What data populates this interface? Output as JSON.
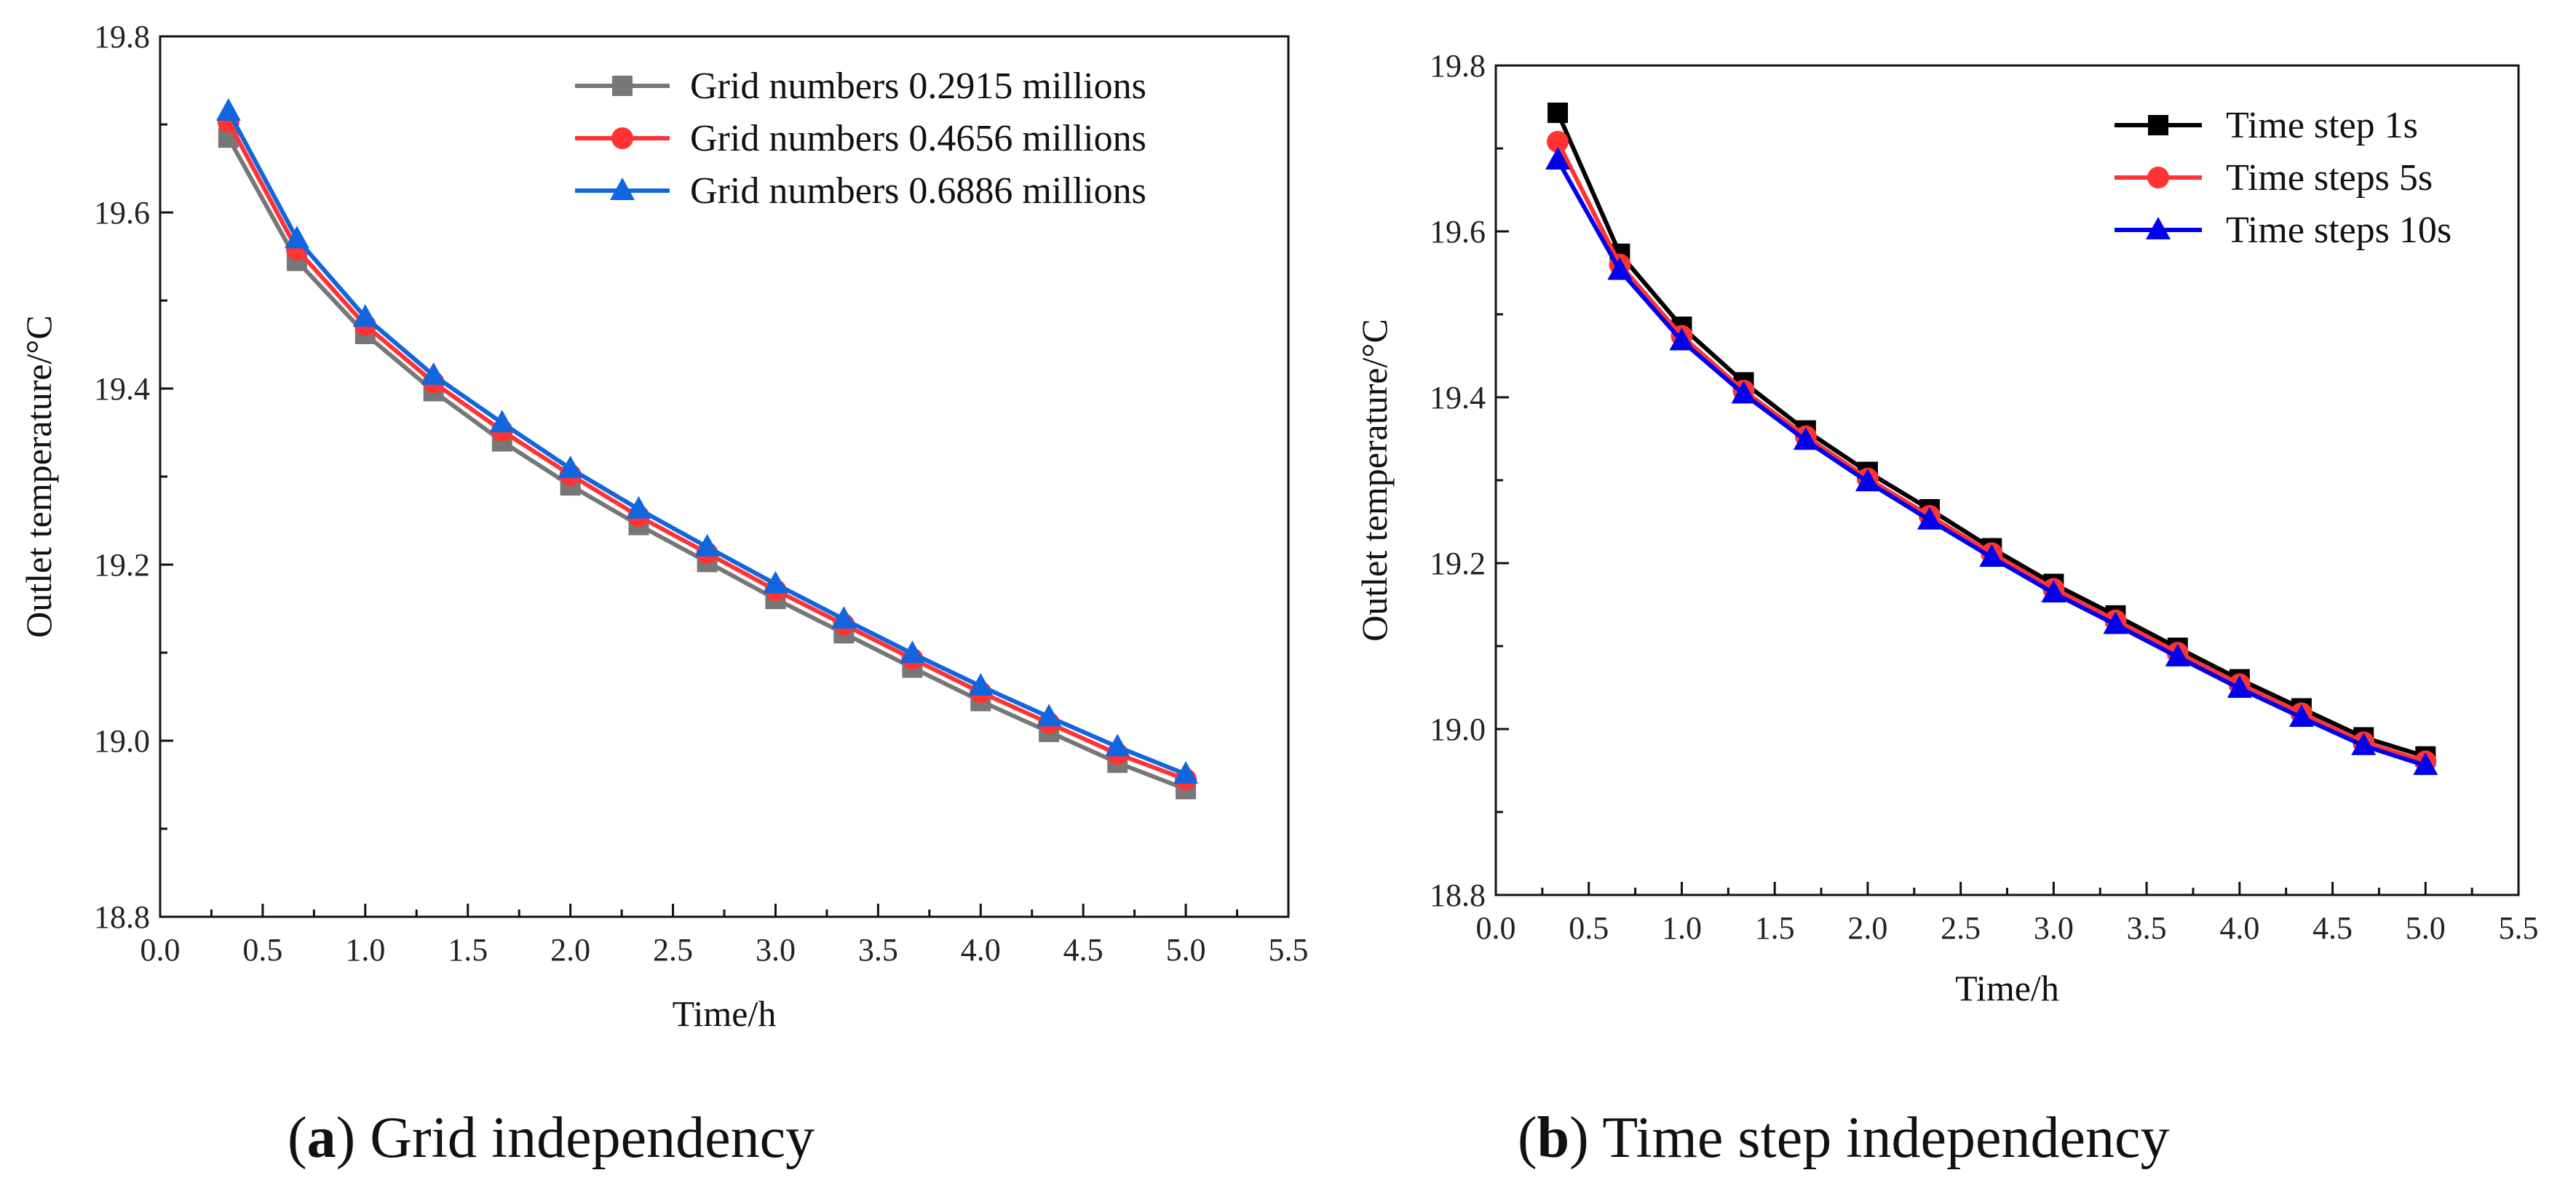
{
  "captions": [
    {
      "letter": "a",
      "text": " Grid independency"
    },
    {
      "letter": "b",
      "text": " Time step independency"
    }
  ],
  "chart_data": [
    {
      "type": "line",
      "title": "",
      "xlabel": "Time/h",
      "ylabel": "Outlet temperature/°C",
      "xlim": [
        0.0,
        5.5
      ],
      "ylim": [
        18.8,
        19.8
      ],
      "xticks": [
        "0.0",
        "0.5",
        "1.0",
        "1.5",
        "2.0",
        "2.5",
        "3.0",
        "3.5",
        "4.0",
        "4.5",
        "5.0",
        "5.5"
      ],
      "yticks": [
        "18.8",
        "19.0",
        "19.2",
        "19.4",
        "19.6",
        "19.8"
      ],
      "legend_position": "top-right",
      "grid": false,
      "x": [
        0.333,
        0.667,
        1.0,
        1.333,
        1.667,
        2.0,
        2.333,
        2.667,
        3.0,
        3.333,
        3.667,
        4.0,
        4.333,
        4.667,
        5.0
      ],
      "series": [
        {
          "name": "Grid numbers 0.2915 millions",
          "color": "#777777",
          "marker": "square",
          "values": [
            19.685,
            19.545,
            19.462,
            19.397,
            19.34,
            19.29,
            19.245,
            19.203,
            19.161,
            19.122,
            19.083,
            19.045,
            19.01,
            18.975,
            18.945
          ]
        },
        {
          "name": "Grid numbers 0.4656 millions",
          "color": "#ff3333",
          "marker": "circle",
          "values": [
            19.703,
            19.558,
            19.472,
            19.407,
            19.352,
            19.302,
            19.255,
            19.213,
            19.171,
            19.132,
            19.093,
            19.055,
            19.02,
            18.985,
            18.956
          ]
        },
        {
          "name": "Grid numbers 0.6886 millions",
          "color": "#1166dd",
          "marker": "triangle",
          "values": [
            19.715,
            19.57,
            19.481,
            19.415,
            19.361,
            19.309,
            19.263,
            19.22,
            19.178,
            19.138,
            19.099,
            19.062,
            19.027,
            18.993,
            18.962
          ]
        }
      ]
    },
    {
      "type": "line",
      "title": "",
      "xlabel": "Time/h",
      "ylabel": "Outlet temperature/°C",
      "xlim": [
        0.0,
        5.5
      ],
      "ylim": [
        18.8,
        19.8
      ],
      "xticks": [
        "0.0",
        "0.5",
        "1.0",
        "1.5",
        "2.0",
        "2.5",
        "3.0",
        "3.5",
        "4.0",
        "4.5",
        "5.0",
        "5.5"
      ],
      "yticks": [
        "18.8",
        "19.0",
        "19.2",
        "19.4",
        "19.6",
        "19.8"
      ],
      "legend_position": "top-right",
      "grid": false,
      "x": [
        0.333,
        0.667,
        1.0,
        1.333,
        1.667,
        2.0,
        2.333,
        2.667,
        3.0,
        3.333,
        3.667,
        4.0,
        4.333,
        4.667,
        5.0
      ],
      "series": [
        {
          "name": "Time step 1s",
          "color": "#000000",
          "marker": "square",
          "values": [
            19.743,
            19.573,
            19.485,
            19.418,
            19.36,
            19.31,
            19.265,
            19.218,
            19.175,
            19.137,
            19.098,
            19.06,
            19.025,
            18.99,
            18.967
          ]
        },
        {
          "name": "Time steps 5s",
          "color": "#ff3333",
          "marker": "circle",
          "values": [
            19.708,
            19.56,
            19.474,
            19.408,
            19.353,
            19.302,
            19.257,
            19.212,
            19.169,
            19.131,
            19.092,
            19.054,
            19.019,
            18.984,
            18.961
          ]
        },
        {
          "name": "Time steps 10s",
          "color": "#0000ee",
          "marker": "triangle",
          "values": [
            19.686,
            19.553,
            19.468,
            19.404,
            19.348,
            19.298,
            19.252,
            19.207,
            19.164,
            19.126,
            19.087,
            19.049,
            19.014,
            18.98,
            18.956
          ]
        }
      ]
    }
  ]
}
